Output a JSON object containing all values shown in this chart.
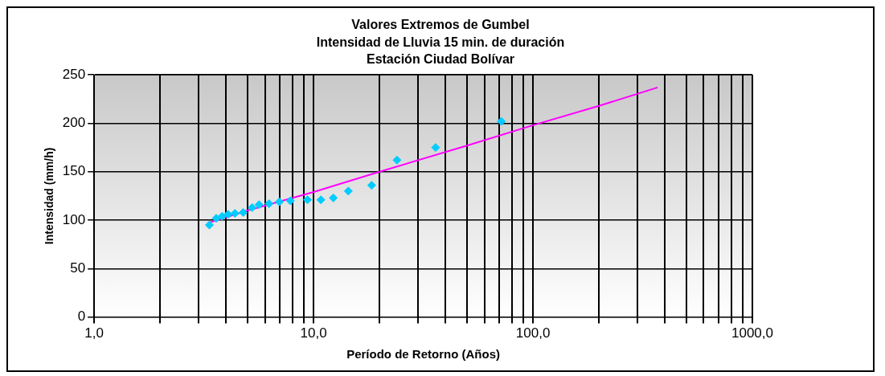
{
  "chart_data": {
    "type": "scatter",
    "title": "Valores Extremos de Gumbel",
    "subtitle": "Intensidad de Lluvia 15 min. de duración\nEstación Ciudad Bolívar",
    "xlabel": "Período de Retorno (Años)",
    "ylabel": "Intensidad (mm/h)",
    "log": "x",
    "grid": true,
    "legend": false,
    "xlim": [
      1,
      1000
    ],
    "ylim": [
      0,
      250
    ],
    "xticks": [
      {
        "value": 1,
        "label": "1,0"
      },
      {
        "value": 2,
        "label": null
      },
      {
        "value": 3,
        "label": null
      },
      {
        "value": 4,
        "label": null
      },
      {
        "value": 5,
        "label": null
      },
      {
        "value": 6,
        "label": null
      },
      {
        "value": 7,
        "label": null
      },
      {
        "value": 8,
        "label": null
      },
      {
        "value": 9,
        "label": null
      },
      {
        "value": 10,
        "label": "10,0"
      },
      {
        "value": 20,
        "label": null
      },
      {
        "value": 30,
        "label": null
      },
      {
        "value": 40,
        "label": null
      },
      {
        "value": 50,
        "label": null
      },
      {
        "value": 60,
        "label": null
      },
      {
        "value": 70,
        "label": null
      },
      {
        "value": 80,
        "label": null
      },
      {
        "value": 90,
        "label": null
      },
      {
        "value": 100,
        "label": "100,0"
      },
      {
        "value": 200,
        "label": null
      },
      {
        "value": 300,
        "label": null
      },
      {
        "value": 400,
        "label": null
      },
      {
        "value": 500,
        "label": null
      },
      {
        "value": 600,
        "label": null
      },
      {
        "value": 700,
        "label": null
      },
      {
        "value": 800,
        "label": null
      },
      {
        "value": 900,
        "label": null
      },
      {
        "value": 1000,
        "label": "1000,0"
      }
    ],
    "yticks": [
      0,
      50,
      100,
      150,
      200,
      250
    ],
    "series": [
      {
        "marker": "diamond",
        "color": "#00ccff",
        "x": [
          3.35,
          3.6,
          3.83,
          4.08,
          4.38,
          4.78,
          5.25,
          5.64,
          6.27,
          6.98,
          7.84,
          9.38,
          10.8,
          12.3,
          14.4,
          18.4,
          24,
          36,
          71.7
        ],
        "values": [
          95,
          102,
          104,
          106,
          107,
          108,
          113,
          116,
          117,
          119,
          120,
          121,
          121,
          123,
          130,
          136,
          162,
          175,
          202
        ]
      },
      {
        "type": "line",
        "marker": "none",
        "color": "#ff00ff",
        "x": [
          3.3,
          5,
          10,
          20,
          50,
          100,
          200,
          370
        ],
        "values": [
          97,
          110,
          129,
          150,
          177,
          198,
          218,
          237
        ]
      }
    ]
  }
}
